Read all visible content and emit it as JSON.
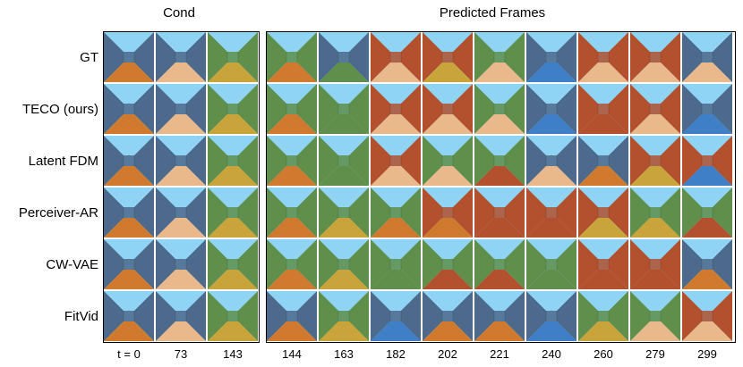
{
  "headers": {
    "cond": "Cond",
    "predicted": "Predicted Frames"
  },
  "rows": [
    {
      "label": "GT",
      "frames": [
        "ob",
        "bp",
        "gy",
        "gb",
        "bg",
        "rp",
        "ry",
        "ga",
        "bs",
        "rp",
        "rp",
        "bp"
      ]
    },
    {
      "label": "TECO (ours)",
      "frames": [
        "ob",
        "bp",
        "gy",
        "gb",
        "gg",
        "rp",
        "rp",
        "ga",
        "bs",
        "rr",
        "rp",
        "bs"
      ]
    },
    {
      "label": "Latent FDM",
      "frames": [
        "ob",
        "bp",
        "gy",
        "gb",
        "gg",
        "rp",
        "gp",
        "gw",
        "ba",
        "sb",
        "ry",
        "rs"
      ]
    },
    {
      "label": "Perceiver-AR",
      "frames": [
        "ob",
        "bp",
        "gy",
        "gb",
        "gy",
        "gb",
        "rb",
        "rw",
        "rw",
        "ry",
        "gy",
        "gw"
      ]
    },
    {
      "label": "CW-VAE",
      "frames": [
        "ob",
        "bp",
        "gy",
        "gb",
        "gy",
        "gg",
        "gw",
        "gw",
        "gl",
        "rd",
        "rd",
        "oo"
      ]
    },
    {
      "label": "FitVid",
      "frames": [
        "ob",
        "bp",
        "gy",
        "bb",
        "gy",
        "bs",
        "sb",
        "bb",
        "ss",
        "gy",
        "gp",
        "rp"
      ]
    }
  ],
  "timesteps": [
    "t = 0",
    "73",
    "143",
    "144",
    "163",
    "182",
    "202",
    "221",
    "240",
    "260",
    "279",
    "299"
  ],
  "colors": {
    "sky": "#8fd3f5",
    "blue_wall": "#4d6a8c",
    "red_wall": "#b3502e",
    "green_wall": "#5f8f4a",
    "orange_floor": "#cf7a2e",
    "peach_floor": "#e9b98c",
    "yellow_floor": "#c9a43a",
    "blue_floor": "#3f7fc8"
  },
  "icons": [
    "maze-frame-thumbnail"
  ]
}
